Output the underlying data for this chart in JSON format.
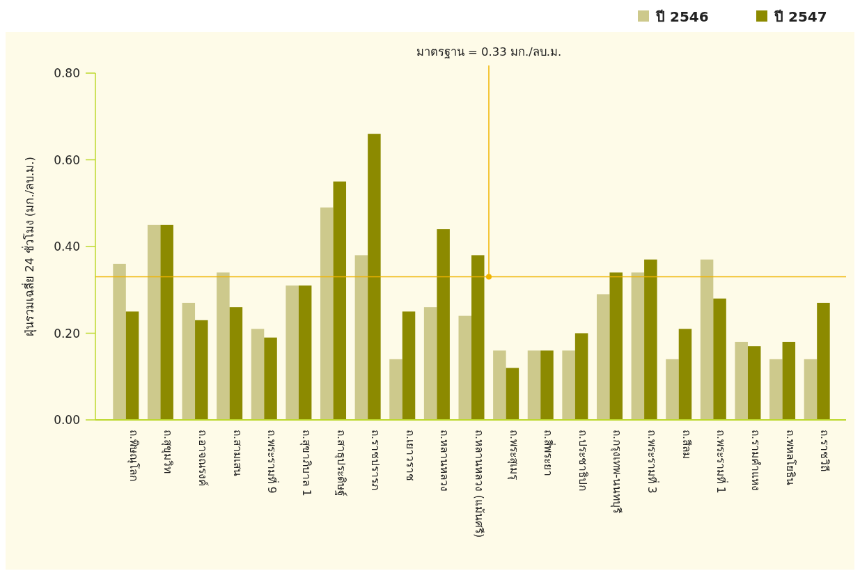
{
  "chart_data": {
    "type": "bar",
    "ylabel": "ฝุ่นรวมเฉลี่ย 24 ชั่วโมง (มก./ลบ.ม.)",
    "categories": [
      "ถ.พิษณุโลก",
      "ถ.สุขุมวิท",
      "ถ.อาจณรงค์",
      "ถ.สามเสน",
      "ถ.พระรามที่ 9",
      "ถ.สุขาภิบาล 1",
      "ถ.สาธุประดิษฐ์",
      "ถ.ราชปรารภ",
      "ถ.เยาวราช",
      "ถ.หลานหลวง",
      "ถ.หลานหลวง (แม้นศรี)",
      "ถ.พระสุเมรุ",
      "ถ.สี่พระยา",
      "ถ.ประชาธิปก",
      "ถ.กรุงเทพ-นนทบุรี",
      "ถ.พระรามที่ 3",
      "ถ.สีลม",
      "ถ.พระรามที่ 1",
      "ถ.รามคำแหง",
      "ถ.พหลโยธิน",
      "ถ.ราชวิถี"
    ],
    "series": [
      {
        "name": "ปี 2546",
        "color": "#cdc98c",
        "values": [
          0.36,
          0.45,
          0.27,
          0.34,
          0.21,
          0.31,
          0.49,
          0.38,
          0.14,
          0.26,
          0.24,
          0.16,
          0.16,
          0.16,
          0.29,
          0.34,
          0.14,
          0.37,
          0.18,
          0.14,
          0.14
        ]
      },
      {
        "name": "ปี 2547",
        "color": "#8c8a00",
        "values": [
          0.25,
          0.45,
          0.23,
          0.26,
          0.19,
          0.31,
          0.55,
          0.66,
          0.25,
          0.44,
          0.38,
          0.12,
          0.16,
          0.2,
          0.34,
          0.37,
          0.21,
          0.28,
          0.17,
          0.18,
          0.27
        ]
      }
    ],
    "ylim": [
      0,
      0.8
    ],
    "yticks": [
      {
        "value": 0,
        "label": "0.00"
      },
      {
        "value": 0.2,
        "label": "0.20"
      },
      {
        "value": 0.4,
        "label": "0.40"
      },
      {
        "value": 0.6,
        "label": "0.60"
      },
      {
        "value": 0.8,
        "label": "0.80"
      }
    ],
    "ref_lines": [
      {
        "axis": "y",
        "value": 0.33,
        "label": "มาตรฐาน = 0.33 มก./ลบ.ม.",
        "color": "#f0b400"
      }
    ],
    "legend": "top right",
    "grid": false
  }
}
